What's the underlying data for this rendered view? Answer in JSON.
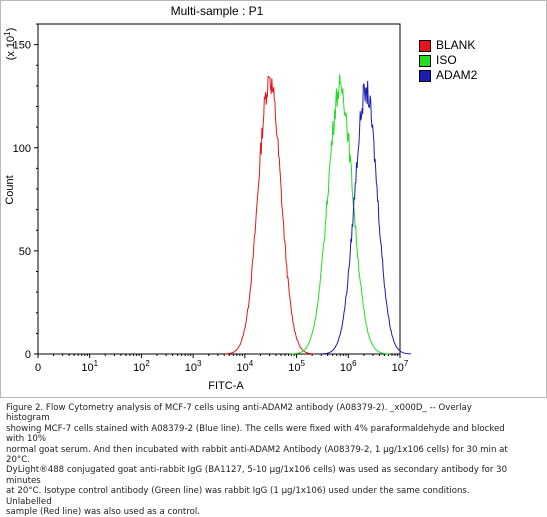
{
  "chart_data": {
    "type": "area",
    "title": "Multi-sample : P1",
    "xlabel": "FITC-A",
    "ylabel": "Count",
    "y_multiplier_label": "(x 10^1)",
    "x_scale": "log",
    "xlim": [
      1,
      10000000
    ],
    "ylim": [
      0,
      160
    ],
    "x_tick_labels": [
      "0",
      "10^1",
      "10^2",
      "10^3",
      "10^4",
      "10^5",
      "10^6",
      "10^7"
    ],
    "y_ticks": [
      0,
      50,
      100,
      150
    ],
    "legend_position": "top-right",
    "series": [
      {
        "name": "BLANK",
        "color": "#e8141c",
        "peak_x": 30000,
        "peak_y": 134,
        "width_log10": 0.22
      },
      {
        "name": "ISO",
        "color": "#22dd22",
        "peak_x": 700000,
        "peak_y": 131,
        "width_log10": 0.24
      },
      {
        "name": "ADAM2",
        "color": "#1a1ab4",
        "peak_x": 2200000,
        "peak_y": 129,
        "width_log10": 0.22
      }
    ]
  },
  "caption": {
    "line1": "Figure 2. Flow Cytometry analysis of MCF-7 cells using anti-ADAM2 antibody (A08379-2).  _x000D_ -- Overlay histogram",
    "line2": "showing MCF-7 cells stained with A08379-2 (Blue line). The cells were fixed with 4% paraformaldehyde and blocked with 10%",
    "line3": "normal goat serum.  And then incubated with rabbit anti-ADAM2 Antibody (A08379-2, 1 μg/1x106 cells) for 30 min at 20°C.",
    "line4": "DyLight®488 conjugated goat anti-rabbit IgG (BA1127, 5-10 μg/1x106 cells) was used as secondary antibody for 30 minutes",
    "line5": "at 20°C. Isotype control antibody (Green line) was rabbit IgG (1 μg/1x106) used under the same conditions. Unlabelled",
    "line6": "sample (Red line) was also used as a control."
  }
}
